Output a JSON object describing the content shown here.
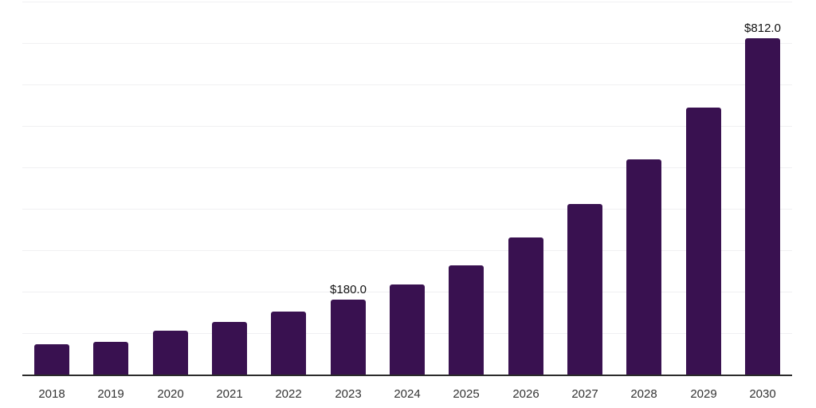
{
  "chart_data": {
    "type": "bar",
    "title": "",
    "xlabel": "",
    "ylabel": "",
    "categories": [
      "2018",
      "2019",
      "2020",
      "2021",
      "2022",
      "2023",
      "2024",
      "2025",
      "2026",
      "2027",
      "2028",
      "2029",
      "2030"
    ],
    "values": [
      73,
      79,
      106,
      127,
      151,
      180,
      217,
      264,
      330,
      411,
      520,
      644,
      812
    ],
    "data_labels": [
      {
        "category": "2023",
        "text": "$180.0"
      },
      {
        "category": "2030",
        "text": "$812.0"
      }
    ],
    "ylim": [
      0,
      900
    ],
    "gridline_step": 100,
    "grid": "horizontal",
    "legend": "none",
    "y_axis_tick_labels_visible": false,
    "colors": {
      "bar": "#391150",
      "x_axis_line": "#2b2b2b",
      "gridline": "#f0f0f2",
      "x_tick_label": "#333333",
      "data_label": "#111111",
      "background": "#ffffff"
    }
  }
}
